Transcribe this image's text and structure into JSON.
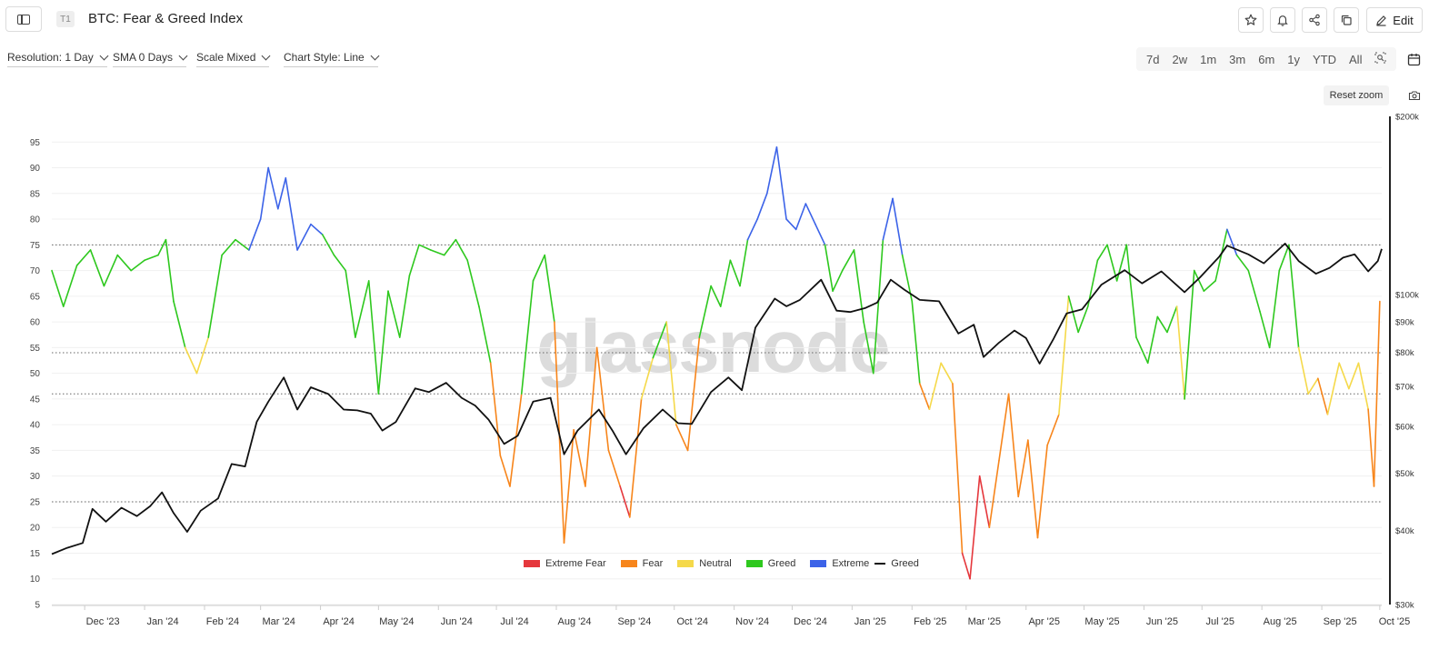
{
  "header": {
    "tier_badge": "T1",
    "title": "BTC: Fear & Greed Index",
    "edit_label": "Edit"
  },
  "controls": {
    "resolution": "Resolution: 1 Day",
    "sma": "SMA 0 Days",
    "scale": "Scale Mixed",
    "chart_style": "Chart Style: Line"
  },
  "ranges": [
    "7d",
    "2w",
    "1m",
    "3m",
    "6m",
    "1y",
    "YTD",
    "All"
  ],
  "reset_zoom_label": "Reset zoom",
  "watermark": "glassnode",
  "colors": {
    "extreme_fear": "#e5373c",
    "fear": "#f7851b",
    "neutral": "#f5d94a",
    "greed": "#2ec81e",
    "extreme_greed": "#3c63e8",
    "price": "#111111"
  },
  "legend": {
    "extreme_fear": "Extreme Fear",
    "fear": "Fear",
    "neutral": "Neutral",
    "greed": "Greed",
    "extreme_greed_a": "Extreme",
    "extreme_greed_b": "Greed"
  },
  "chart_data": {
    "type": "line",
    "x_ticks": [
      "Dec '23",
      "Jan '24",
      "Feb '24",
      "Mar '24",
      "Apr '24",
      "May '24",
      "Jun '24",
      "Jul '24",
      "Aug '24",
      "Sep '24",
      "Oct '24",
      "Nov '24",
      "Dec '24",
      "Jan '25",
      "Feb '25",
      "Mar '25",
      "Apr '25",
      "May '25",
      "Jun '25",
      "Jul '25",
      "Aug '25",
      "Sep '25",
      "Oct '25"
    ],
    "x_tick_dates": [
      "2023-12-01",
      "2024-01-01",
      "2024-02-01",
      "2024-03-01",
      "2024-04-01",
      "2024-05-01",
      "2024-06-01",
      "2024-07-01",
      "2024-08-01",
      "2024-09-01",
      "2024-10-01",
      "2024-11-01",
      "2024-12-01",
      "2025-01-01",
      "2025-02-01",
      "2025-03-01",
      "2025-04-01",
      "2025-05-01",
      "2025-06-01",
      "2025-07-01",
      "2025-08-01",
      "2025-09-01",
      "2025-10-01"
    ],
    "x_range": [
      "2023-11-14",
      "2025-10-02"
    ],
    "y_left": {
      "ticks": [
        5,
        10,
        15,
        20,
        25,
        30,
        35,
        40,
        45,
        50,
        55,
        60,
        65,
        70,
        75,
        80,
        85,
        90,
        95
      ],
      "range": [
        5,
        100
      ]
    },
    "y_right": {
      "ticks": [
        "$200k",
        "$100k",
        "$90k",
        "$80k",
        "$70k",
        "$60k",
        "$50k",
        "$40k",
        "$30k"
      ],
      "values": [
        200000,
        100000,
        90000,
        80000,
        70000,
        60000,
        50000,
        40000,
        30000
      ],
      "range": [
        30000,
        200000
      ],
      "scale": "log"
    },
    "reference_lines": [
      75,
      54,
      46,
      25
    ],
    "series": [
      {
        "name": "Fear & Greed Index",
        "axis": "left",
        "colored_by": "sentiment",
        "points": [
          [
            "2023-11-14",
            70
          ],
          [
            "2023-11-20",
            63
          ],
          [
            "2023-11-27",
            71
          ],
          [
            "2023-12-04",
            74
          ],
          [
            "2023-12-11",
            67
          ],
          [
            "2023-12-18",
            73
          ],
          [
            "2023-12-25",
            70
          ],
          [
            "2024-01-01",
            72
          ],
          [
            "2024-01-08",
            73
          ],
          [
            "2024-01-12",
            76
          ],
          [
            "2024-01-16",
            64
          ],
          [
            "2024-01-22",
            55
          ],
          [
            "2024-01-28",
            50
          ],
          [
            "2024-02-03",
            57
          ],
          [
            "2024-02-10",
            73
          ],
          [
            "2024-02-17",
            76
          ],
          [
            "2024-02-24",
            74
          ],
          [
            "2024-03-01",
            80
          ],
          [
            "2024-03-05",
            90
          ],
          [
            "2024-03-10",
            82
          ],
          [
            "2024-03-14",
            88
          ],
          [
            "2024-03-20",
            74
          ],
          [
            "2024-03-27",
            79
          ],
          [
            "2024-04-02",
            77
          ],
          [
            "2024-04-08",
            73
          ],
          [
            "2024-04-14",
            70
          ],
          [
            "2024-04-19",
            57
          ],
          [
            "2024-04-26",
            68
          ],
          [
            "2024-05-01",
            46
          ],
          [
            "2024-05-06",
            66
          ],
          [
            "2024-05-12",
            57
          ],
          [
            "2024-05-17",
            69
          ],
          [
            "2024-05-22",
            75
          ],
          [
            "2024-05-28",
            74
          ],
          [
            "2024-06-04",
            73
          ],
          [
            "2024-06-10",
            76
          ],
          [
            "2024-06-16",
            72
          ],
          [
            "2024-06-22",
            63
          ],
          [
            "2024-06-28",
            52
          ],
          [
            "2024-07-03",
            34
          ],
          [
            "2024-07-08",
            28
          ],
          [
            "2024-07-14",
            46
          ],
          [
            "2024-07-20",
            68
          ],
          [
            "2024-07-26",
            73
          ],
          [
            "2024-07-31",
            60
          ],
          [
            "2024-08-05",
            17
          ],
          [
            "2024-08-10",
            39
          ],
          [
            "2024-08-16",
            28
          ],
          [
            "2024-08-22",
            55
          ],
          [
            "2024-08-28",
            35
          ],
          [
            "2024-09-03",
            28
          ],
          [
            "2024-09-08",
            22
          ],
          [
            "2024-09-14",
            45
          ],
          [
            "2024-09-20",
            53
          ],
          [
            "2024-09-27",
            60
          ],
          [
            "2024-10-02",
            40
          ],
          [
            "2024-10-08",
            35
          ],
          [
            "2024-10-14",
            57
          ],
          [
            "2024-10-20",
            67
          ],
          [
            "2024-10-25",
            63
          ],
          [
            "2024-10-30",
            72
          ],
          [
            "2024-11-04",
            67
          ],
          [
            "2024-11-08",
            76
          ],
          [
            "2024-11-13",
            80
          ],
          [
            "2024-11-18",
            85
          ],
          [
            "2024-11-23",
            94
          ],
          [
            "2024-11-28",
            80
          ],
          [
            "2024-12-03",
            78
          ],
          [
            "2024-12-08",
            83
          ],
          [
            "2024-12-13",
            79
          ],
          [
            "2024-12-18",
            75
          ],
          [
            "2024-12-22",
            66
          ],
          [
            "2024-12-27",
            70
          ],
          [
            "2025-01-02",
            74
          ],
          [
            "2025-01-07",
            60
          ],
          [
            "2025-01-12",
            50
          ],
          [
            "2025-01-17",
            76
          ],
          [
            "2025-01-22",
            84
          ],
          [
            "2025-01-27",
            73
          ],
          [
            "2025-02-01",
            64
          ],
          [
            "2025-02-05",
            48
          ],
          [
            "2025-02-10",
            43
          ],
          [
            "2025-02-16",
            52
          ],
          [
            "2025-02-22",
            48
          ],
          [
            "2025-02-27",
            15
          ],
          [
            "2025-03-03",
            10
          ],
          [
            "2025-03-08",
            30
          ],
          [
            "2025-03-13",
            20
          ],
          [
            "2025-03-18",
            33
          ],
          [
            "2025-03-23",
            46
          ],
          [
            "2025-03-28",
            26
          ],
          [
            "2025-04-02",
            37
          ],
          [
            "2025-04-07",
            18
          ],
          [
            "2025-04-12",
            36
          ],
          [
            "2025-04-18",
            42
          ],
          [
            "2025-04-23",
            65
          ],
          [
            "2025-04-28",
            58
          ],
          [
            "2025-05-03",
            63
          ],
          [
            "2025-05-08",
            72
          ],
          [
            "2025-05-13",
            75
          ],
          [
            "2025-05-18",
            68
          ],
          [
            "2025-05-23",
            75
          ],
          [
            "2025-05-28",
            57
          ],
          [
            "2025-06-03",
            52
          ],
          [
            "2025-06-08",
            61
          ],
          [
            "2025-06-13",
            58
          ],
          [
            "2025-06-18",
            63
          ],
          [
            "2025-06-22",
            45
          ],
          [
            "2025-06-27",
            70
          ],
          [
            "2025-07-02",
            66
          ],
          [
            "2025-07-08",
            68
          ],
          [
            "2025-07-14",
            78
          ],
          [
            "2025-07-19",
            73
          ],
          [
            "2025-07-25",
            70
          ],
          [
            "2025-07-31",
            62
          ],
          [
            "2025-08-05",
            55
          ],
          [
            "2025-08-10",
            70
          ],
          [
            "2025-08-15",
            75
          ],
          [
            "2025-08-20",
            55
          ],
          [
            "2025-08-25",
            46
          ],
          [
            "2025-08-30",
            49
          ],
          [
            "2025-09-04",
            42
          ],
          [
            "2025-09-10",
            52
          ],
          [
            "2025-09-15",
            47
          ],
          [
            "2025-09-20",
            52
          ],
          [
            "2025-09-25",
            43
          ],
          [
            "2025-09-28",
            28
          ],
          [
            "2025-10-01",
            64
          ]
        ]
      },
      {
        "name": "Price",
        "axis": "right",
        "color": "#111111",
        "points": [
          [
            "2023-11-14",
            36500
          ],
          [
            "2023-11-22",
            37400
          ],
          [
            "2023-11-30",
            38100
          ],
          [
            "2023-12-05",
            43500
          ],
          [
            "2023-12-12",
            41400
          ],
          [
            "2023-12-20",
            43700
          ],
          [
            "2023-12-28",
            42300
          ],
          [
            "2024-01-04",
            44000
          ],
          [
            "2024-01-10",
            46400
          ],
          [
            "2024-01-16",
            42800
          ],
          [
            "2024-01-23",
            39800
          ],
          [
            "2024-01-30",
            43200
          ],
          [
            "2024-02-08",
            45300
          ],
          [
            "2024-02-15",
            51800
          ],
          [
            "2024-02-22",
            51300
          ],
          [
            "2024-02-28",
            61000
          ],
          [
            "2024-03-05",
            66000
          ],
          [
            "2024-03-13",
            72500
          ],
          [
            "2024-03-20",
            64000
          ],
          [
            "2024-03-27",
            69800
          ],
          [
            "2024-04-05",
            68000
          ],
          [
            "2024-04-13",
            64000
          ],
          [
            "2024-04-20",
            63800
          ],
          [
            "2024-04-27",
            63000
          ],
          [
            "2024-05-03",
            59000
          ],
          [
            "2024-05-10",
            61000
          ],
          [
            "2024-05-20",
            69500
          ],
          [
            "2024-05-27",
            68500
          ],
          [
            "2024-06-05",
            71000
          ],
          [
            "2024-06-13",
            67000
          ],
          [
            "2024-06-20",
            65000
          ],
          [
            "2024-06-27",
            61500
          ],
          [
            "2024-07-05",
            56000
          ],
          [
            "2024-07-12",
            57800
          ],
          [
            "2024-07-20",
            66000
          ],
          [
            "2024-07-29",
            67000
          ],
          [
            "2024-08-05",
            53800
          ],
          [
            "2024-08-12",
            59000
          ],
          [
            "2024-08-23",
            64000
          ],
          [
            "2024-08-30",
            59000
          ],
          [
            "2024-09-06",
            53800
          ],
          [
            "2024-09-15",
            59500
          ],
          [
            "2024-09-25",
            64000
          ],
          [
            "2024-10-03",
            60700
          ],
          [
            "2024-10-10",
            60500
          ],
          [
            "2024-10-20",
            68500
          ],
          [
            "2024-10-29",
            72500
          ],
          [
            "2024-11-05",
            69000
          ],
          [
            "2024-11-12",
            88000
          ],
          [
            "2024-11-22",
            98500
          ],
          [
            "2024-11-28",
            95600
          ],
          [
            "2024-12-05",
            98000
          ],
          [
            "2024-12-16",
            106000
          ],
          [
            "2024-12-24",
            94000
          ],
          [
            "2024-12-31",
            93500
          ],
          [
            "2025-01-08",
            95000
          ],
          [
            "2025-01-14",
            97000
          ],
          [
            "2025-01-21",
            106000
          ],
          [
            "2025-01-28",
            102000
          ],
          [
            "2025-02-05",
            98000
          ],
          [
            "2025-02-15",
            97500
          ],
          [
            "2025-02-25",
            86000
          ],
          [
            "2025-03-05",
            89000
          ],
          [
            "2025-03-10",
            78500
          ],
          [
            "2025-03-18",
            83000
          ],
          [
            "2025-03-26",
            87000
          ],
          [
            "2025-04-01",
            84500
          ],
          [
            "2025-04-08",
            76500
          ],
          [
            "2025-04-15",
            84000
          ],
          [
            "2025-04-22",
            93000
          ],
          [
            "2025-04-30",
            94500
          ],
          [
            "2025-05-10",
            104000
          ],
          [
            "2025-05-22",
            110000
          ],
          [
            "2025-05-31",
            104500
          ],
          [
            "2025-06-10",
            109500
          ],
          [
            "2025-06-22",
            101000
          ],
          [
            "2025-06-30",
            107000
          ],
          [
            "2025-07-10",
            116000
          ],
          [
            "2025-07-14",
            121000
          ],
          [
            "2025-07-25",
            117000
          ],
          [
            "2025-08-02",
            113000
          ],
          [
            "2025-08-13",
            122000
          ],
          [
            "2025-08-20",
            114000
          ],
          [
            "2025-08-29",
            108500
          ],
          [
            "2025-09-05",
            111000
          ],
          [
            "2025-09-12",
            115500
          ],
          [
            "2025-09-18",
            117000
          ],
          [
            "2025-09-25",
            109500
          ],
          [
            "2025-09-30",
            114000
          ],
          [
            "2025-10-02",
            119500
          ]
        ]
      }
    ]
  }
}
